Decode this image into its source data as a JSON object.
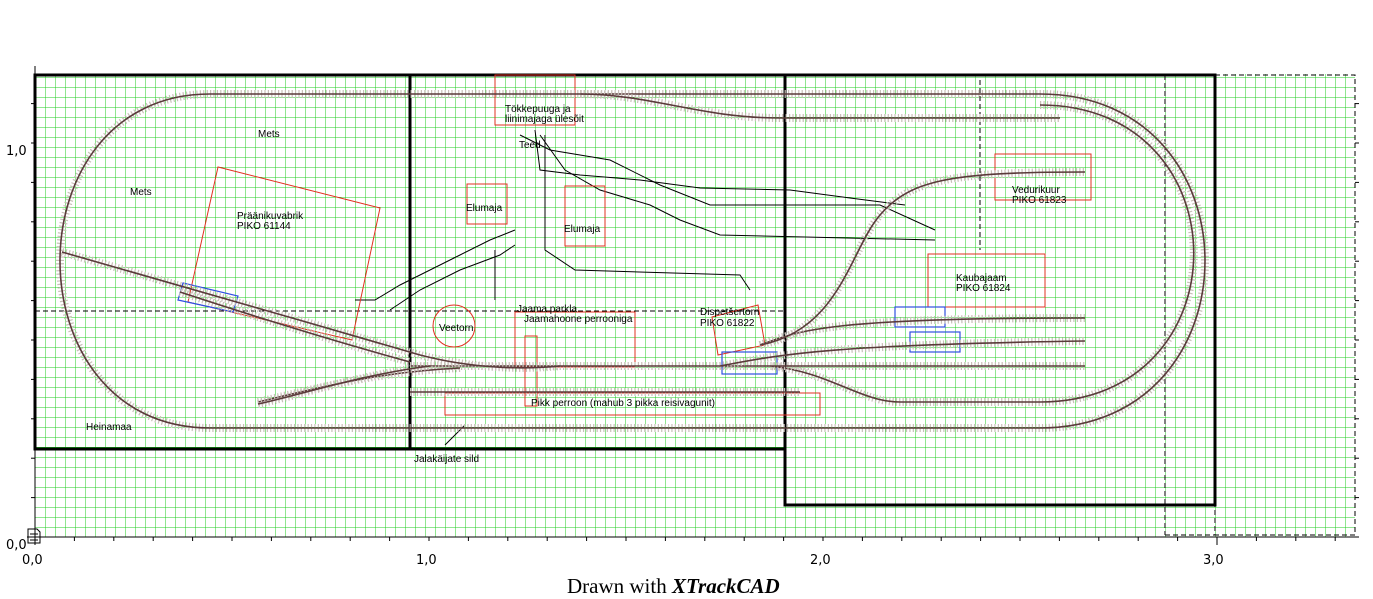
{
  "axes": {
    "x_ticks": [
      "0,0",
      "1,0",
      "2,0",
      "3,0"
    ],
    "y_ticks": [
      "0,0",
      "1,0"
    ]
  },
  "labels": {
    "mets_1": "Mets",
    "mets_2": "Mets",
    "factory_line1": "Präänikuvabrik",
    "factory_line2": "PIKO 61144",
    "wood_line1": "Tökkepuuga ja",
    "wood_line2": "liinimajaga ülesõit",
    "teed": "Teed",
    "elumaja_1": "Elumaja",
    "elumaja_2": "Elumaja",
    "vedurikuur_line1": "Vedurikuur",
    "vedurikuur_line2": "PIKO 61823",
    "kaubajaam_line1": "Kaubajaam",
    "kaubajaam_line2": "PIKO 61824",
    "veetorn": "Veetorn",
    "parkla": "Jaama parkla",
    "jaamahoone": "Jaamahoone perrooniga",
    "disp_line1": "Dispetšertorn",
    "disp_line2": "PIKO 61822",
    "pikk_perroon": "Pikk perroon (mahub 3 pikka reisivagunit)",
    "heinamaa": "Heinamaa",
    "sild": "Jalakäijate sild"
  },
  "footer": {
    "prefix": "Drawn with ",
    "brand": "XTrackCAD"
  },
  "colors": {
    "grid": "#22cc22",
    "board": "#000000",
    "track_rail": "#5a3a3a",
    "track_bed": "#c8c0b8",
    "building": "#e03020",
    "vehicle": "#3050e0",
    "road": "#000000"
  }
}
